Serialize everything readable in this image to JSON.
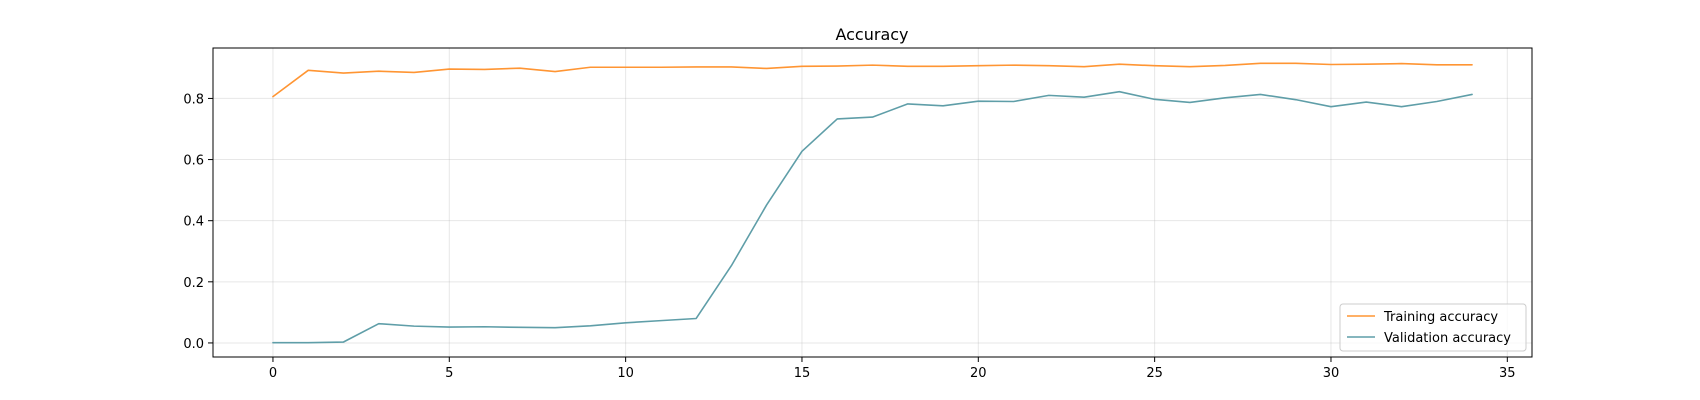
{
  "chart_data": {
    "type": "line",
    "title": "Accuracy",
    "xlabel": "",
    "ylabel": "",
    "xlim": [
      -1.7,
      35.7
    ],
    "ylim": [
      -0.046,
      0.965
    ],
    "xticks": [
      0,
      5,
      10,
      15,
      20,
      25,
      30,
      35
    ],
    "yticks": [
      0.0,
      0.2,
      0.4,
      0.6,
      0.8
    ],
    "ytick_labels": [
      "0.0",
      "0.2",
      "0.4",
      "0.6",
      "0.8"
    ],
    "grid": true,
    "legend": {
      "placement": "lower-right",
      "entries": [
        "Training accuracy",
        "Validation accuracy"
      ]
    },
    "x": [
      0,
      1,
      2,
      3,
      4,
      5,
      6,
      7,
      8,
      9,
      10,
      11,
      12,
      13,
      14,
      15,
      16,
      17,
      18,
      19,
      20,
      21,
      22,
      23,
      24,
      25,
      26,
      27,
      28,
      29,
      30,
      31,
      32,
      33,
      34
    ],
    "series": [
      {
        "name": "Training accuracy",
        "color": "#ff9533",
        "values": [
          0.806,
          0.892,
          0.883,
          0.889,
          0.885,
          0.896,
          0.895,
          0.899,
          0.888,
          0.902,
          0.902,
          0.902,
          0.903,
          0.903,
          0.898,
          0.905,
          0.906,
          0.909,
          0.905,
          0.905,
          0.907,
          0.909,
          0.907,
          0.904,
          0.912,
          0.907,
          0.904,
          0.908,
          0.915,
          0.915,
          0.911,
          0.912,
          0.914,
          0.91,
          0.91
        ]
      },
      {
        "name": "Validation accuracy",
        "color": "#5f9ea8",
        "values": [
          0.001,
          0.001,
          0.003,
          0.063,
          0.055,
          0.052,
          0.053,
          0.051,
          0.05,
          0.056,
          0.066,
          0.073,
          0.08,
          0.253,
          0.452,
          0.627,
          0.733,
          0.739,
          0.782,
          0.776,
          0.791,
          0.79,
          0.81,
          0.804,
          0.822,
          0.797,
          0.787,
          0.802,
          0.813,
          0.796,
          0.773,
          0.788,
          0.773,
          0.79,
          0.813
        ]
      }
    ]
  }
}
